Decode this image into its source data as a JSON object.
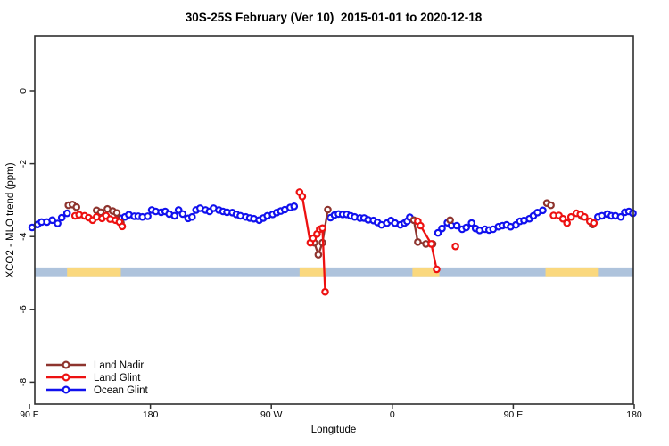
{
  "title": "30S-25S February (Ver 10)  2015-01-01 to 2020-12-18",
  "colors": {
    "land_nadir": "#8E342E",
    "land_glint": "#ED1111",
    "ocean_glint": "#1111EE",
    "band_ocean": "#AEC3DC",
    "band_land": "#FAD87E",
    "axis": "#2F2F2F",
    "background": "#FFFFFF"
  },
  "chart_data": {
    "type": "line",
    "title": "30S-25S February (Ver 10)  2015-01-01 to 2020-12-18",
    "xlabel": "Longitude",
    "ylabel": "XCO2 - MLO trend (ppm)",
    "grid": false,
    "legend_position": "bottom-left",
    "x_axis": {
      "note": "longitude axis wraps: 90E to 180 to 90W to 0 to 90E to 180, stored as 90..540 continuous degrees",
      "ticks": [
        90,
        180,
        270,
        360,
        450,
        540
      ],
      "tick_labels": [
        "90 E",
        "180",
        "90 W",
        "0",
        "90 E",
        "180"
      ],
      "range": [
        94,
        539.5
      ]
    },
    "y_axis": {
      "ticks": [
        0,
        -2,
        -4,
        -6,
        -8
      ],
      "tick_labels": [
        "0",
        "-2",
        "-4",
        "-6",
        "-8"
      ],
      "range": [
        -8.6,
        1.5
      ]
    },
    "surface_band": {
      "y_center_ppm": -4.97,
      "half_height_ppm": 0.12,
      "ocean_color": "#AEC3DC",
      "land_color": "#FAD87E",
      "x_range": [
        94,
        539.3
      ],
      "land_segments": [
        [
          118,
          158
        ],
        [
          291,
          311
        ],
        [
          375,
          395
        ],
        [
          474,
          513
        ]
      ]
    },
    "series": [
      {
        "name": "Ocean Glint",
        "color": "#1111EE",
        "segments": [
          [
            [
              92,
              -3.75
            ],
            [
              96,
              -3.67
            ],
            [
              99,
              -3.6
            ],
            [
              103,
              -3.6
            ],
            [
              107,
              -3.55
            ],
            [
              111,
              -3.64
            ],
            [
              114,
              -3.48
            ],
            [
              118,
              -3.36
            ]
          ],
          [
            [
              158,
              -3.5
            ],
            [
              161,
              -3.46
            ],
            [
              164,
              -3.4
            ],
            [
              168,
              -3.44
            ],
            [
              171,
              -3.44
            ],
            [
              174,
              -3.46
            ],
            [
              178,
              -3.44
            ],
            [
              181,
              -3.27
            ],
            [
              184,
              -3.31
            ],
            [
              188,
              -3.33
            ],
            [
              191,
              -3.31
            ],
            [
              194,
              -3.38
            ],
            [
              198,
              -3.43
            ],
            [
              201,
              -3.27
            ],
            [
              204,
              -3.38
            ],
            [
              208,
              -3.5
            ],
            [
              211,
              -3.46
            ],
            [
              214,
              -3.27
            ],
            [
              217,
              -3.22
            ],
            [
              221,
              -3.27
            ],
            [
              224,
              -3.31
            ],
            [
              227,
              -3.22
            ],
            [
              231,
              -3.27
            ],
            [
              234,
              -3.31
            ],
            [
              237,
              -3.33
            ],
            [
              241,
              -3.34
            ],
            [
              244,
              -3.39
            ],
            [
              247,
              -3.43
            ],
            [
              251,
              -3.46
            ],
            [
              254,
              -3.49
            ],
            [
              257,
              -3.51
            ],
            [
              261,
              -3.55
            ],
            [
              264,
              -3.49
            ],
            [
              267,
              -3.43
            ],
            [
              271,
              -3.39
            ],
            [
              274,
              -3.34
            ],
            [
              277,
              -3.3
            ],
            [
              280,
              -3.26
            ],
            [
              284,
              -3.2
            ],
            [
              287,
              -3.17
            ]
          ],
          [
            [
              314,
              -3.48
            ],
            [
              317,
              -3.41
            ],
            [
              320,
              -3.38
            ],
            [
              323,
              -3.39
            ],
            [
              326,
              -3.39
            ],
            [
              329,
              -3.43
            ],
            [
              332,
              -3.46
            ],
            [
              336,
              -3.49
            ],
            [
              339,
              -3.49
            ],
            [
              342,
              -3.54
            ],
            [
              346,
              -3.56
            ],
            [
              349,
              -3.61
            ],
            [
              352,
              -3.68
            ],
            [
              356,
              -3.63
            ],
            [
              359,
              -3.56
            ],
            [
              362,
              -3.63
            ],
            [
              366,
              -3.68
            ],
            [
              369,
              -3.63
            ],
            [
              371,
              -3.58
            ],
            [
              373,
              -3.47
            ]
          ],
          [
            [
              394,
              -3.9
            ],
            [
              397,
              -3.78
            ],
            [
              401,
              -3.62
            ],
            [
              404,
              -3.7
            ],
            [
              408,
              -3.7
            ],
            [
              412,
              -3.8
            ],
            [
              415,
              -3.75
            ],
            [
              419,
              -3.63
            ],
            [
              422,
              -3.78
            ],
            [
              425,
              -3.83
            ],
            [
              429,
              -3.8
            ],
            [
              432,
              -3.82
            ],
            [
              435,
              -3.8
            ],
            [
              439,
              -3.73
            ],
            [
              442,
              -3.7
            ],
            [
              445,
              -3.68
            ],
            [
              448,
              -3.73
            ],
            [
              452,
              -3.68
            ],
            [
              455,
              -3.58
            ],
            [
              458,
              -3.56
            ],
            [
              462,
              -3.51
            ],
            [
              465,
              -3.43
            ],
            [
              468,
              -3.34
            ],
            [
              472,
              -3.28
            ]
          ],
          [
            [
              513,
              -3.46
            ],
            [
              516,
              -3.43
            ],
            [
              520,
              -3.38
            ],
            [
              523,
              -3.43
            ],
            [
              526,
              -3.43
            ],
            [
              530,
              -3.46
            ],
            [
              533,
              -3.33
            ],
            [
              536,
              -3.31
            ],
            [
              539,
              -3.36
            ]
          ]
        ]
      },
      {
        "name": "Land Nadir",
        "color": "#8E342E",
        "segments": [
          [
            [
              119,
              -3.14
            ],
            [
              122,
              -3.12
            ],
            [
              125,
              -3.19
            ]
          ],
          [
            [
              140,
              -3.28
            ],
            [
              143,
              -3.33
            ],
            [
              148,
              -3.24
            ],
            [
              152,
              -3.3
            ],
            [
              155,
              -3.35
            ],
            [
              158,
              -3.62
            ]
          ],
          [
            [
              302,
              -4.17
            ],
            [
              305,
              -4.5
            ],
            [
              308,
              -4.17
            ],
            [
              312,
              -3.26
            ]
          ],
          [
            [
              376,
              -3.55
            ],
            [
              379,
              -4.15
            ],
            [
              385,
              -4.2
            ],
            [
              390,
              -4.2
            ]
          ],
          [
            [
              403,
              -3.55
            ]
          ],
          [
            [
              475,
              -3.08
            ],
            [
              478,
              -3.14
            ]
          ],
          [
            [
              501,
              -3.44
            ],
            [
              509,
              -3.67
            ]
          ]
        ]
      },
      {
        "name": "Land Glint",
        "color": "#ED1111",
        "segments": [
          [
            [
              124,
              -3.43
            ],
            [
              127,
              -3.4
            ],
            [
              131,
              -3.43
            ],
            [
              134,
              -3.48
            ],
            [
              137,
              -3.55
            ],
            [
              140,
              -3.46
            ],
            [
              144,
              -3.5
            ],
            [
              147,
              -3.43
            ],
            [
              150,
              -3.52
            ],
            [
              154,
              -3.55
            ],
            [
              157,
              -3.6
            ],
            [
              159,
              -3.72
            ]
          ],
          [
            [
              291,
              -2.78
            ],
            [
              293,
              -2.9
            ],
            [
              299,
              -4.17
            ],
            [
              301,
              -4.05
            ],
            [
              304,
              -3.93
            ],
            [
              306,
              -3.8
            ],
            [
              308,
              -3.77
            ],
            [
              310,
              -5.52
            ]
          ],
          [
            [
              379,
              -3.58
            ],
            [
              381,
              -3.7
            ],
            [
              389,
              -4.2
            ],
            [
              393,
              -4.9
            ]
          ],
          [
            [
              407,
              -4.27
            ]
          ],
          [
            [
              480,
              -3.42
            ],
            [
              484,
              -3.42
            ],
            [
              487,
              -3.51
            ],
            [
              490,
              -3.63
            ],
            [
              493,
              -3.46
            ],
            [
              497,
              -3.36
            ],
            [
              500,
              -3.39
            ],
            [
              503,
              -3.46
            ],
            [
              507,
              -3.58
            ],
            [
              510,
              -3.63
            ]
          ]
        ]
      }
    ],
    "legend": {
      "entries": [
        {
          "label": "Land Nadir",
          "color": "#8E342E"
        },
        {
          "label": "Land Glint",
          "color": "#ED1111"
        },
        {
          "label": "Ocean Glint",
          "color": "#1111EE"
        }
      ]
    }
  }
}
